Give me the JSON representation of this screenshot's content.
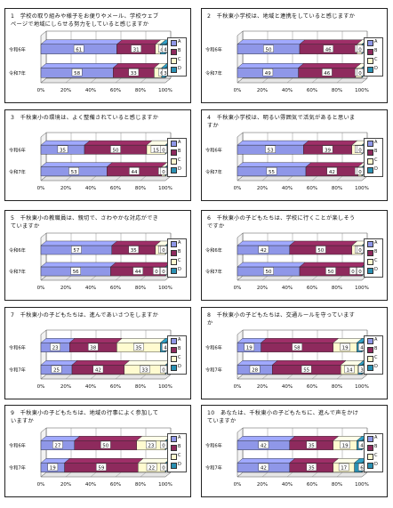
{
  "legend": [
    "A",
    "B",
    "C",
    "D"
  ],
  "colors": {
    "A": "#8f97e8",
    "B": "#8e2a5d",
    "C": "#fffbd0",
    "D": "#2a90b3"
  },
  "chart_data": [
    {
      "type": "bar",
      "stacked": true,
      "orientation": "horizontal",
      "title": "1　学校の取り組みや様子をお便りやメール、学校ウェブページで地域にしらせる努力をしていると感じますか",
      "categories": [
        "令和6年",
        "令和7年"
      ],
      "series": [
        {
          "name": "A",
          "values": [
            61,
            58
          ]
        },
        {
          "name": "B",
          "values": [
            31,
            33
          ]
        },
        {
          "name": "C",
          "values": [
            4,
            6
          ]
        },
        {
          "name": "D",
          "values": [
            4,
            3
          ]
        }
      ],
      "xticks": [
        "0%",
        "20%",
        "40%",
        "60%",
        "80%",
        "100%"
      ],
      "xlim": [
        0,
        100
      ],
      "legend": "right"
    },
    {
      "type": "bar",
      "stacked": true,
      "orientation": "horizontal",
      "title": "2　千秋東小学校は、地域と連携をしていると感じますか",
      "categories": [
        "令和6年",
        "令和7年"
      ],
      "series": [
        {
          "name": "A",
          "values": [
            50,
            49
          ]
        },
        {
          "name": "B",
          "values": [
            46,
            46
          ]
        },
        {
          "name": "C",
          "values": [
            4,
            5
          ]
        },
        {
          "name": "D",
          "values": [
            0,
            0
          ]
        }
      ],
      "xticks": [
        "0%",
        "20%",
        "40%",
        "60%",
        "80%",
        "100%"
      ],
      "xlim": [
        0,
        100
      ],
      "legend": "right"
    },
    {
      "type": "bar",
      "stacked": true,
      "orientation": "horizontal",
      "title": "3　千秋東小の環境は、よく整備されていると感じますか",
      "categories": [
        "令和6年",
        "令和7年"
      ],
      "series": [
        {
          "name": "A",
          "values": [
            35,
            53
          ]
        },
        {
          "name": "B",
          "values": [
            50,
            44
          ]
        },
        {
          "name": "C",
          "values": [
            15,
            3
          ]
        },
        {
          "name": "D",
          "values": [
            0,
            0
          ]
        }
      ],
      "xticks": [
        "0%",
        "20%",
        "40%",
        "60%",
        "80%",
        "100%"
      ],
      "xlim": [
        0,
        100
      ],
      "legend": "right"
    },
    {
      "type": "bar",
      "stacked": true,
      "orientation": "horizontal",
      "title": "4　千秋東小学校は、明るい雰囲気で活気があると思いますか",
      "categories": [
        "令和6年",
        "令和7年"
      ],
      "series": [
        {
          "name": "A",
          "values": [
            53,
            55
          ]
        },
        {
          "name": "B",
          "values": [
            39,
            42
          ]
        },
        {
          "name": "C",
          "values": [
            8,
            3
          ]
        },
        {
          "name": "D",
          "values": [
            0,
            0
          ]
        }
      ],
      "xticks": [
        "0%",
        "20%",
        "40%",
        "60%",
        "80%",
        "100%"
      ],
      "xlim": [
        0,
        100
      ],
      "legend": "right"
    },
    {
      "type": "bar",
      "stacked": true,
      "orientation": "horizontal",
      "title": "5　千秋東小の教職員は、親切で、さわやかな対応ができていますか",
      "categories": [
        "令和6年",
        "令和7年"
      ],
      "series": [
        {
          "name": "A",
          "values": [
            57,
            56
          ]
        },
        {
          "name": "B",
          "values": [
            35,
            44
          ]
        },
        {
          "name": "C",
          "values": [
            8,
            0
          ]
        },
        {
          "name": "D",
          "values": [
            0,
            0
          ]
        }
      ],
      "xticks": [
        "0%",
        "20%",
        "40%",
        "60%",
        "80%",
        "100%"
      ],
      "xlim": [
        0,
        100
      ],
      "legend": "right"
    },
    {
      "type": "bar",
      "stacked": true,
      "orientation": "horizontal",
      "title": "6　千秋東小の子どもたちは、学校に行くことが楽しそうですか",
      "categories": [
        "令和6年",
        "令和7年"
      ],
      "series": [
        {
          "name": "A",
          "values": [
            42,
            50
          ]
        },
        {
          "name": "B",
          "values": [
            50,
            50
          ]
        },
        {
          "name": "C",
          "values": [
            8,
            0
          ]
        },
        {
          "name": "D",
          "values": [
            0,
            0
          ]
        }
      ],
      "xticks": [
        "0%",
        "20%",
        "40%",
        "60%",
        "80%",
        "100%"
      ],
      "xlim": [
        0,
        100
      ],
      "legend": "right"
    },
    {
      "type": "bar",
      "stacked": true,
      "orientation": "horizontal",
      "title": "7　千秋東小の子どもたちは、進んであいさつをしますか",
      "categories": [
        "令和6年",
        "令和7年"
      ],
      "series": [
        {
          "name": "A",
          "values": [
            23,
            25
          ]
        },
        {
          "name": "B",
          "values": [
            38,
            42
          ]
        },
        {
          "name": "C",
          "values": [
            35,
            33
          ]
        },
        {
          "name": "D",
          "values": [
            4,
            0
          ]
        }
      ],
      "xticks": [
        "0%",
        "20%",
        "40%",
        "60%",
        "80%",
        "100%"
      ],
      "xlim": [
        0,
        100
      ],
      "legend": "right"
    },
    {
      "type": "bar",
      "stacked": true,
      "orientation": "horizontal",
      "title": "8　千秋東小の子どもたちは、交通ルールを守っていますか",
      "categories": [
        "令和6年",
        "令和7年"
      ],
      "series": [
        {
          "name": "A",
          "values": [
            19,
            28
          ]
        },
        {
          "name": "B",
          "values": [
            58,
            55
          ]
        },
        {
          "name": "C",
          "values": [
            19,
            14
          ]
        },
        {
          "name": "D",
          "values": [
            4,
            3
          ]
        }
      ],
      "xticks": [
        "0%",
        "20%",
        "40%",
        "60%",
        "80%",
        "100%"
      ],
      "xlim": [
        0,
        100
      ],
      "legend": "right"
    },
    {
      "type": "bar",
      "stacked": true,
      "orientation": "horizontal",
      "title": "9　千秋東小の子どもたちは、地域の行事によく参加していますか",
      "categories": [
        "令和6年",
        "令和7年"
      ],
      "series": [
        {
          "name": "A",
          "values": [
            27,
            19
          ]
        },
        {
          "name": "B",
          "values": [
            50,
            59
          ]
        },
        {
          "name": "C",
          "values": [
            23,
            22
          ]
        },
        {
          "name": "D",
          "values": [
            0,
            0
          ]
        }
      ],
      "xticks": [
        "0%",
        "20%",
        "40%",
        "60%",
        "80%",
        "100%"
      ],
      "xlim": [
        0,
        100
      ],
      "legend": "right"
    },
    {
      "type": "bar",
      "stacked": true,
      "orientation": "horizontal",
      "title": "10　あなたは、千秋東小の子どもたちに、進んで声をかけていますか",
      "categories": [
        "令和6年",
        "令和7年"
      ],
      "series": [
        {
          "name": "A",
          "values": [
            42,
            42
          ]
        },
        {
          "name": "B",
          "values": [
            35,
            35
          ]
        },
        {
          "name": "C",
          "values": [
            19,
            17
          ]
        },
        {
          "name": "D",
          "values": [
            4,
            6
          ]
        }
      ],
      "xticks": [
        "0%",
        "20%",
        "40%",
        "60%",
        "80%",
        "100%"
      ],
      "xlim": [
        0,
        100
      ],
      "legend": "right"
    }
  ]
}
